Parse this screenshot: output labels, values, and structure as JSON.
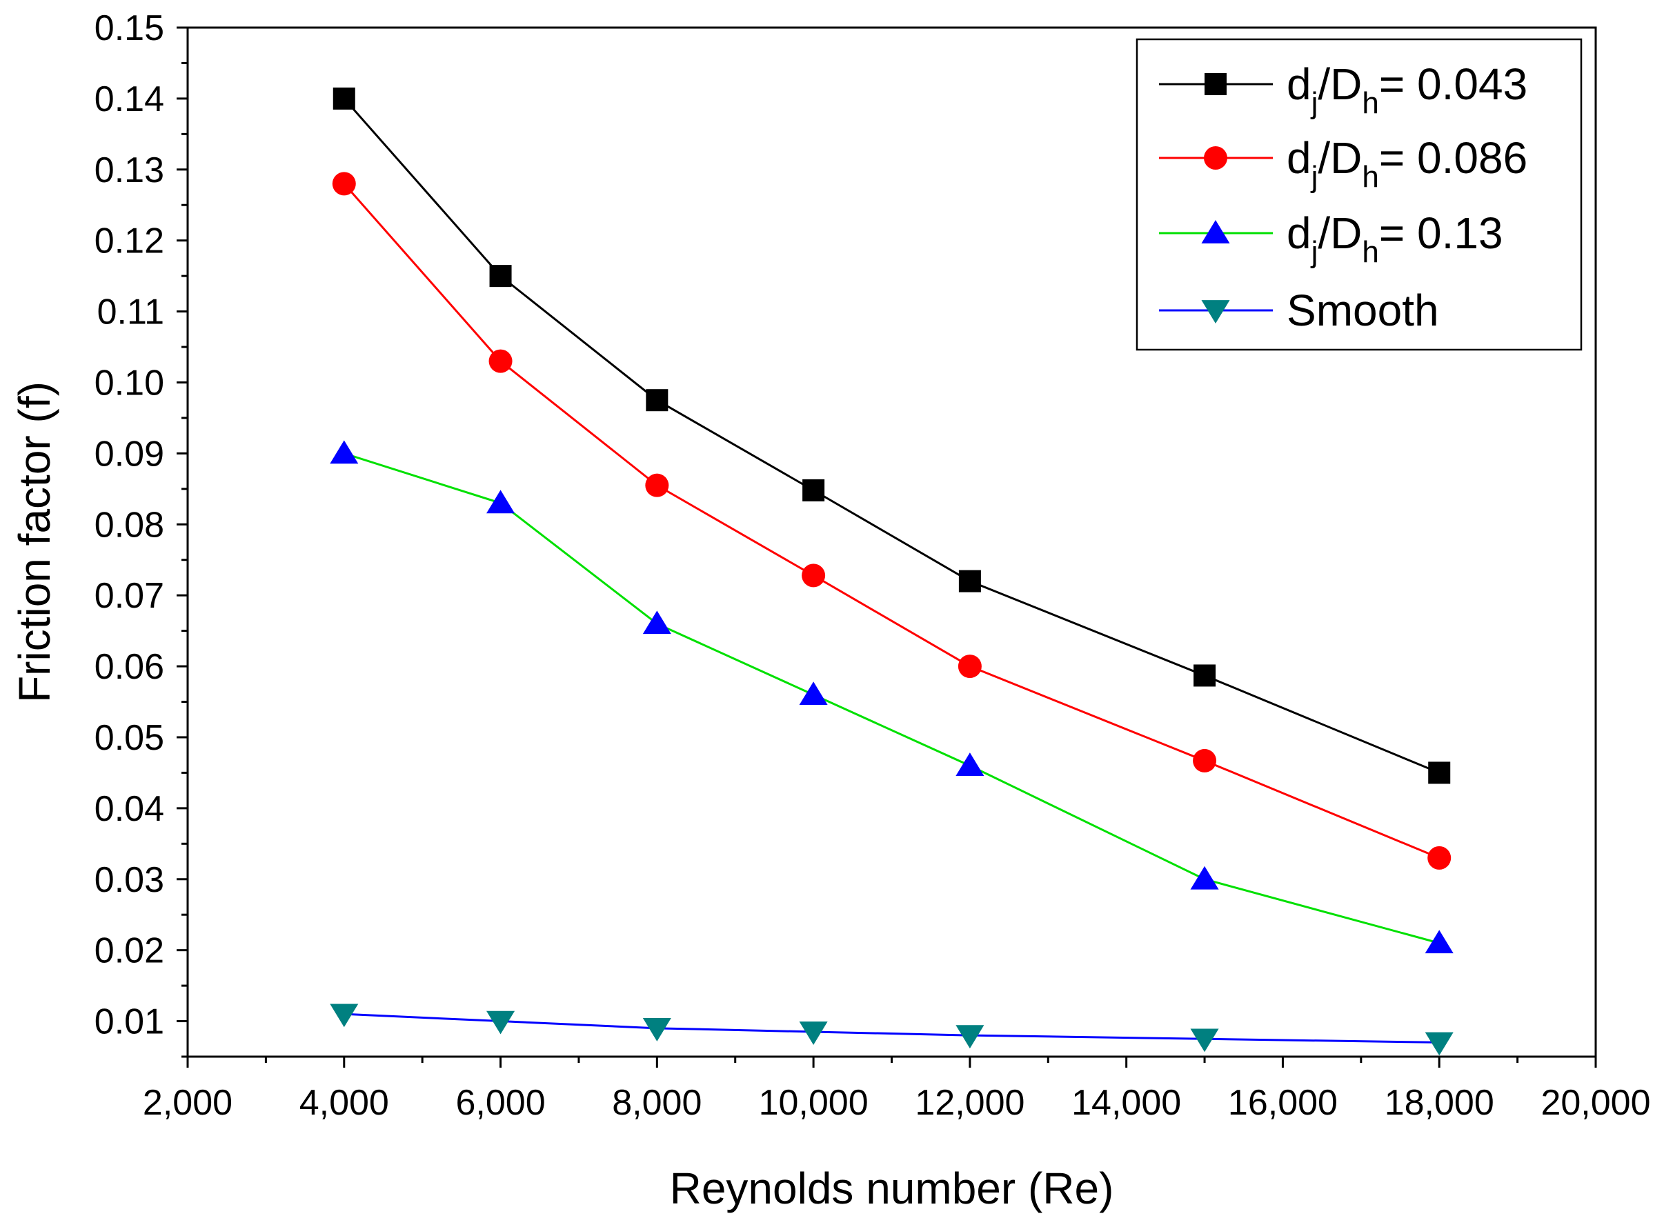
{
  "chart_data": {
    "type": "line",
    "title": "",
    "xlabel": "Reynolds number (Re)",
    "ylabel": "Friction factor (f)",
    "xlim": [
      2000,
      20000
    ],
    "ylim": [
      0.005,
      0.15
    ],
    "x_ticks": [
      2000,
      4000,
      6000,
      8000,
      10000,
      12000,
      14000,
      16000,
      18000,
      20000
    ],
    "x_tick_labels": [
      "2,000",
      "4,000",
      "6,000",
      "8,000",
      "10,000",
      "12,000",
      "14,000",
      "16,000",
      "18,000",
      "20,000"
    ],
    "y_ticks": [
      0.01,
      0.02,
      0.03,
      0.04,
      0.05,
      0.06,
      0.07,
      0.08,
      0.09,
      0.1,
      0.11,
      0.12,
      0.13,
      0.14,
      0.15
    ],
    "y_tick_labels": [
      "0.01",
      "0.02",
      "0.03",
      "0.04",
      "0.05",
      "0.06",
      "0.07",
      "0.08",
      "0.09",
      "0.10",
      "0.11",
      "0.12",
      "0.13",
      "0.14",
      "0.15"
    ],
    "grid": false,
    "legend_position": "top-right",
    "x": [
      4000,
      6000,
      8000,
      10000,
      12000,
      15000,
      18000
    ],
    "series": [
      {
        "name": "dj/Dh= 0.043",
        "legend_base": "d",
        "legend_sub1": "j",
        "legend_mid": "/D",
        "legend_sub2": "h",
        "legend_value": "= 0.043",
        "marker": "square",
        "line_color": "#000000",
        "marker_color": "#000000",
        "values": [
          0.14,
          0.115,
          0.0975,
          0.0848,
          0.072,
          0.0587,
          0.045
        ]
      },
      {
        "name": "dj/Dh= 0.086",
        "legend_base": "d",
        "legend_sub1": "j",
        "legend_mid": "/D",
        "legend_sub2": "h",
        "legend_value": "= 0.086",
        "marker": "circle",
        "line_color": "#ff0000",
        "marker_color": "#ff0000",
        "values": [
          0.128,
          0.103,
          0.0855,
          0.0728,
          0.06,
          0.0467,
          0.033
        ]
      },
      {
        "name": "dj/Dh= 0.13",
        "legend_base": "d",
        "legend_sub1": "j",
        "legend_mid": "/D",
        "legend_sub2": "h",
        "legend_value": "= 0.13",
        "marker": "triangle-up",
        "line_color": "#00e000",
        "marker_color": "#0000ff",
        "values": [
          0.09,
          0.083,
          0.066,
          0.056,
          0.046,
          0.03,
          0.021
        ]
      },
      {
        "name": "Smooth",
        "legend_plain": "Smooth",
        "marker": "triangle-down",
        "line_color": "#0000ff",
        "marker_color": "#008080",
        "values": [
          0.011,
          0.01,
          0.009,
          0.0085,
          0.008,
          0.0075,
          0.007
        ]
      }
    ]
  }
}
